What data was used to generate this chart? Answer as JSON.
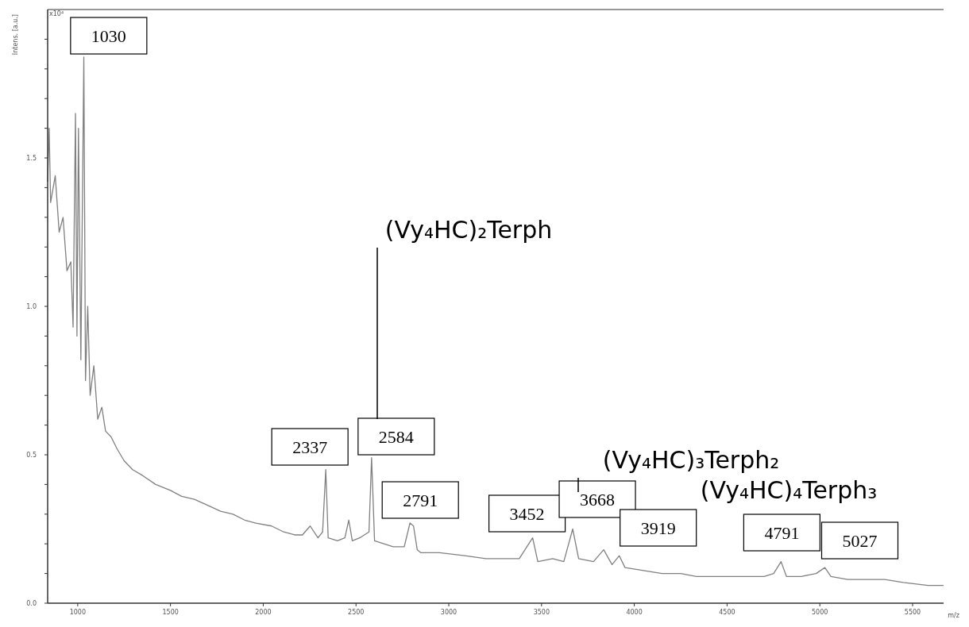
{
  "chart_data": {
    "type": "line",
    "xlabel": "m/z",
    "ylabel": "Intens. [a.u.]",
    "xlim": [
      838,
      5667
    ],
    "ylim": [
      0,
      2.0
    ],
    "xticks": [
      1000,
      1500,
      2000,
      2500,
      3000,
      3500,
      4000,
      4500,
      5000,
      5500
    ],
    "yticks": [
      {
        "value": 0,
        "label": "0.0"
      },
      {
        "value": 0.1,
        "label": null
      },
      {
        "value": 0.2,
        "label": null
      },
      {
        "value": 0.3,
        "label": null
      },
      {
        "value": 0.4,
        "label": null
      },
      0.5,
      {
        "value": 0.6,
        "label": null
      },
      {
        "value": 0.7,
        "label": null
      },
      {
        "value": 0.8,
        "label": null
      },
      {
        "value": 0.9,
        "label": null
      },
      {
        "value": 1,
        "label": "1.0"
      },
      {
        "value": 1.1,
        "label": null
      },
      {
        "value": 1.2,
        "label": null
      },
      {
        "value": 1.3,
        "label": null
      },
      {
        "value": 1.4,
        "label": null
      },
      1.5,
      {
        "value": 1.6,
        "label": null
      },
      {
        "value": 1.7,
        "label": null
      },
      {
        "value": 1.8,
        "label": null
      },
      {
        "value": 1.9,
        "label": null
      }
    ],
    "grid": false,
    "marker": "none",
    "line_style": "solid",
    "series": [
      {
        "color": "#808080",
        "x": [
          838,
          846,
          854,
          879,
          900,
          921,
          942,
          963,
          975,
          988,
          996,
          1004,
          1017,
          1033,
          1042,
          1054,
          1067,
          1087,
          1108,
          1130,
          1150,
          1180,
          1212,
          1250,
          1296,
          1350,
          1420,
          1500,
          1560,
          1629,
          1700,
          1770,
          1837,
          1900,
          1960,
          2045,
          2110,
          2170,
          2211,
          2253,
          2295,
          2320,
          2337,
          2350,
          2400,
          2440,
          2461,
          2480,
          2520,
          2570,
          2584,
          2600,
          2650,
          2700,
          2760,
          2791,
          2810,
          2830,
          2850,
          2950,
          3086,
          3200,
          3294,
          3380,
          3452,
          3480,
          3560,
          3620,
          3668,
          3700,
          3780,
          3835,
          3880,
          3919,
          3950,
          4050,
          4150,
          4250,
          4335,
          4450,
          4550,
          4700,
          4751,
          4791,
          4820,
          4900,
          4980,
          5027,
          5060,
          5150,
          5250,
          5350,
          5450,
          5583,
          5667
        ],
        "values": [
          1.42,
          1.6,
          1.35,
          1.44,
          1.25,
          1.3,
          1.12,
          1.15,
          0.93,
          1.65,
          0.9,
          1.6,
          0.82,
          1.84,
          0.75,
          1.0,
          0.7,
          0.8,
          0.62,
          0.66,
          0.58,
          0.56,
          0.52,
          0.48,
          0.45,
          0.43,
          0.4,
          0.38,
          0.36,
          0.35,
          0.33,
          0.31,
          0.3,
          0.28,
          0.27,
          0.26,
          0.24,
          0.23,
          0.23,
          0.26,
          0.22,
          0.24,
          0.45,
          0.22,
          0.21,
          0.22,
          0.28,
          0.21,
          0.22,
          0.24,
          0.49,
          0.21,
          0.2,
          0.19,
          0.19,
          0.27,
          0.26,
          0.18,
          0.17,
          0.17,
          0.16,
          0.15,
          0.15,
          0.15,
          0.22,
          0.14,
          0.15,
          0.14,
          0.25,
          0.15,
          0.14,
          0.18,
          0.13,
          0.16,
          0.12,
          0.11,
          0.1,
          0.1,
          0.09,
          0.09,
          0.09,
          0.09,
          0.1,
          0.14,
          0.09,
          0.09,
          0.1,
          0.12,
          0.09,
          0.08,
          0.08,
          0.08,
          0.07,
          0.06,
          0.06
        ]
      }
    ],
    "annotations": [
      {
        "text": "1030",
        "x": 1030,
        "y": 1.84
      },
      {
        "text": "2337",
        "x": 2337,
        "y": 0.45
      },
      {
        "text": "2584",
        "x": 2584,
        "y": 0.49
      },
      {
        "text": "2791",
        "x": 2791,
        "y": 0.27
      },
      {
        "text": "3452",
        "x": 3452,
        "y": 0.22
      },
      {
        "text": "3668",
        "x": 3668,
        "y": 0.25
      },
      {
        "text": "3919",
        "x": 3919,
        "y": 0.16
      },
      {
        "text": "4791",
        "x": 4791,
        "y": 0.14
      },
      {
        "text": "5027",
        "x": 5027,
        "y": 0.12
      },
      "(Vy₄HC)₂Terph",
      "(Vy₄HC)₃Terph₂",
      "(Vy₄HC)₄Terph₃",
      "x10⁴"
    ]
  }
}
